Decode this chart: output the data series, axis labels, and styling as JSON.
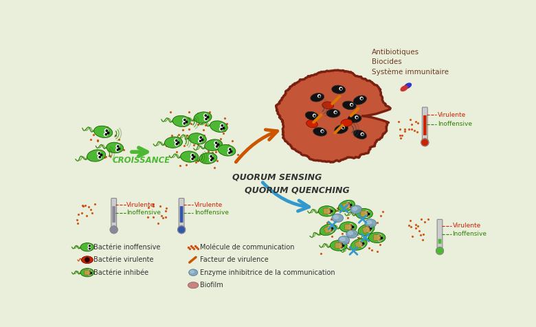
{
  "bg_color": "#eaefdc",
  "ab_label": "Antibiotiques\nBiocides\nSystème immunitaire",
  "croissance_label": "CROISSANCE",
  "qs_label": "QUORUM SENSING",
  "qq_label": "QUORUM QUENCHING",
  "virulente_label": "Virulente",
  "inoffensive_label": "Inoffensive",
  "green": "#4db833",
  "dark_green": "#2d8000",
  "red": "#cc2200",
  "orange": "#cc5500",
  "blue": "#3399cc",
  "brown": "#8B4010",
  "biofilm_red": "#c04020",
  "legend_left": [
    "Bactérie inoffensive",
    "Bactérie virulente",
    "Bactérie inhibée"
  ],
  "legend_right": [
    "Molécule de communication",
    "Facteur de virulence",
    "Enzyme inhibitrice de la communication",
    "Biofilm"
  ]
}
